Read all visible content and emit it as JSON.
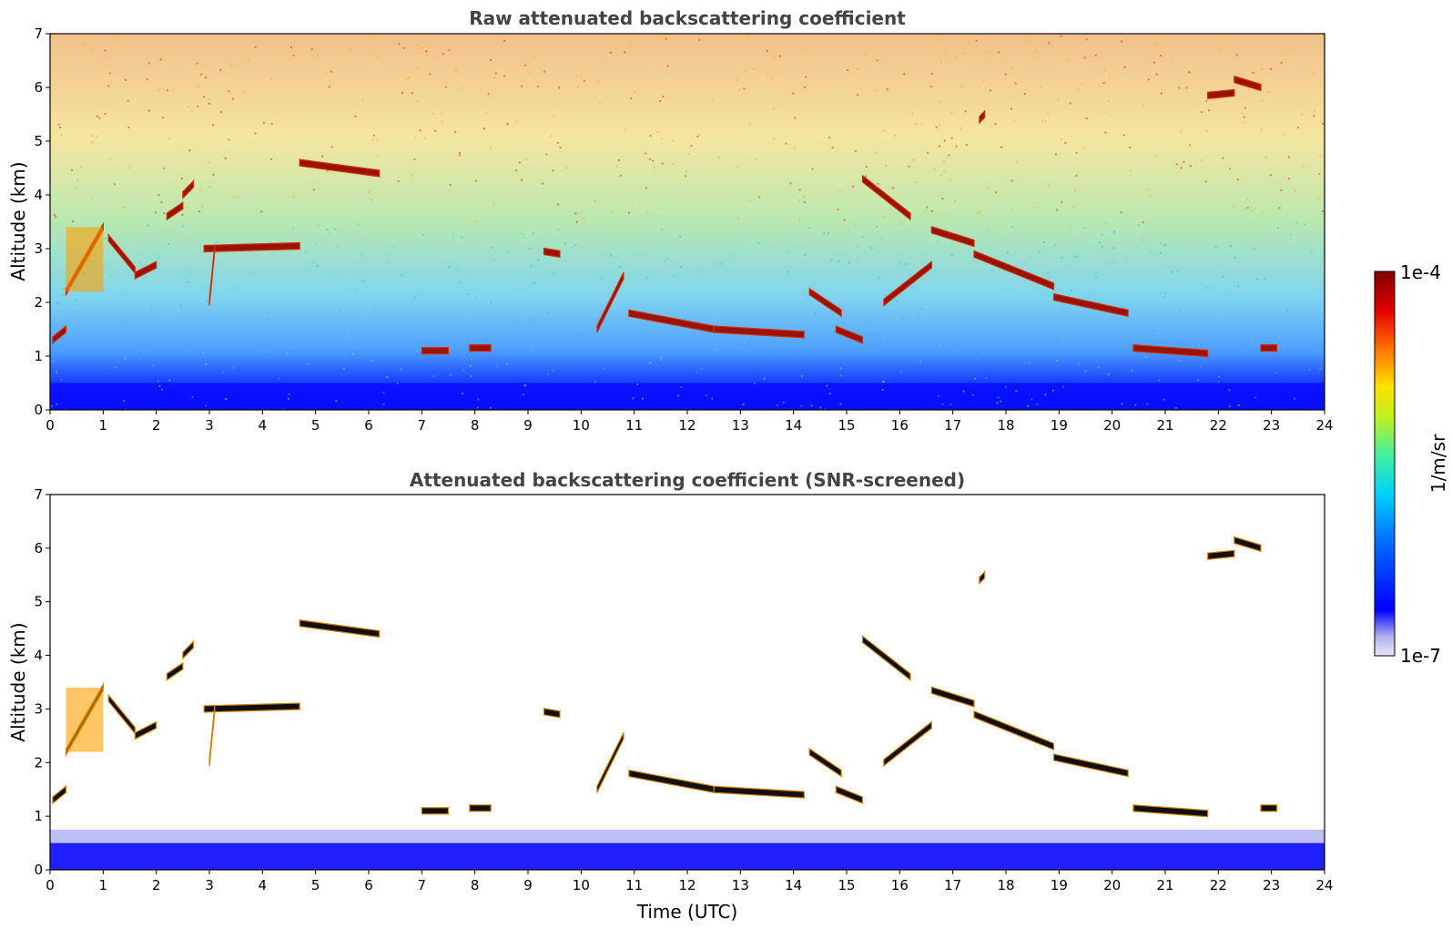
{
  "chart_data": [
    {
      "type": "heatmap",
      "title": "Raw attenuated backscattering coefficient",
      "xlabel": "",
      "ylabel": "Altitude (km)",
      "xlim": [
        0,
        24
      ],
      "ylim": [
        0,
        7
      ],
      "xticks": [
        "0",
        "1",
        "2",
        "3",
        "4",
        "5",
        "6",
        "7",
        "8",
        "9",
        "10",
        "11",
        "12",
        "13",
        "14",
        "15",
        "16",
        "17",
        "18",
        "19",
        "20",
        "21",
        "22",
        "23",
        "24"
      ],
      "yticks": [
        "0",
        "1",
        "2",
        "3",
        "4",
        "5",
        "6",
        "7"
      ],
      "background": "noisy signal increasing with altitude",
      "layers": [
        {
          "x": [
            0.05,
            0.3
          ],
          "y": [
            1.3,
            1.5
          ]
        },
        {
          "x": [
            0.3,
            1.0
          ],
          "y": [
            2.2,
            3.4
          ]
        },
        {
          "x": [
            1.1,
            1.6
          ],
          "y": [
            3.2,
            2.6
          ]
        },
        {
          "x": [
            1.6,
            2.0
          ],
          "y": [
            2.5,
            2.7
          ]
        },
        {
          "x": [
            2.2,
            2.5
          ],
          "y": [
            3.6,
            3.8
          ]
        },
        {
          "x": [
            2.5,
            2.7
          ],
          "y": [
            4.0,
            4.2
          ]
        },
        {
          "x": [
            2.9,
            4.7
          ],
          "y": [
            3.0,
            3.05
          ]
        },
        {
          "x": [
            3.0,
            3.1
          ],
          "y": [
            2.0,
            3.0
          ]
        },
        {
          "x": [
            4.7,
            6.2
          ],
          "y": [
            4.6,
            4.4
          ]
        },
        {
          "x": [
            9.3,
            9.6
          ],
          "y": [
            2.95,
            2.9
          ]
        },
        {
          "x": [
            7.0,
            7.5
          ],
          "y": [
            1.1,
            1.1
          ]
        },
        {
          "x": [
            7.9,
            8.3
          ],
          "y": [
            1.15,
            1.15
          ]
        },
        {
          "x": [
            10.3,
            10.8
          ],
          "y": [
            1.5,
            2.5
          ]
        },
        {
          "x": [
            10.9,
            12.5
          ],
          "y": [
            1.8,
            1.5
          ]
        },
        {
          "x": [
            12.5,
            14.2
          ],
          "y": [
            1.5,
            1.4
          ]
        },
        {
          "x": [
            14.3,
            14.9
          ],
          "y": [
            2.2,
            1.8
          ]
        },
        {
          "x": [
            14.8,
            15.3
          ],
          "y": [
            1.5,
            1.3
          ]
        },
        {
          "x": [
            15.3,
            16.2
          ],
          "y": [
            4.3,
            3.6
          ]
        },
        {
          "x": [
            15.7,
            16.6
          ],
          "y": [
            2.0,
            2.7
          ]
        },
        {
          "x": [
            16.6,
            17.4
          ],
          "y": [
            3.35,
            3.1
          ]
        },
        {
          "x": [
            17.4,
            18.9
          ],
          "y": [
            2.9,
            2.3
          ]
        },
        {
          "x": [
            18.9,
            20.3
          ],
          "y": [
            2.1,
            1.8
          ]
        },
        {
          "x": [
            17.5,
            17.6
          ],
          "y": [
            5.4,
            5.5
          ]
        },
        {
          "x": [
            20.4,
            21.8
          ],
          "y": [
            1.15,
            1.05
          ]
        },
        {
          "x": [
            21.8,
            22.3
          ],
          "y": [
            5.85,
            5.9
          ]
        },
        {
          "x": [
            22.3,
            22.8
          ],
          "y": [
            6.15,
            6.0
          ]
        },
        {
          "x": [
            22.8,
            23.1
          ],
          "y": [
            1.15,
            1.15
          ]
        }
      ]
    },
    {
      "type": "heatmap",
      "title": "Attenuated backscattering coefficient (SNR-screened)",
      "xlabel": "Time (UTC)",
      "ylabel": "Altitude (km)",
      "xlim": [
        0,
        24
      ],
      "ylim": [
        0,
        7
      ],
      "xticks": [
        "0",
        "1",
        "2",
        "3",
        "4",
        "5",
        "6",
        "7",
        "8",
        "9",
        "10",
        "11",
        "12",
        "13",
        "14",
        "15",
        "16",
        "17",
        "18",
        "19",
        "20",
        "21",
        "22",
        "23",
        "24"
      ],
      "yticks": [
        "0",
        "1",
        "2",
        "3",
        "4",
        "5",
        "6",
        "7"
      ],
      "background": "screened (white) except near-surface layer",
      "boundary_layer_top_km": 0.5,
      "layers": [
        {
          "x": [
            0.05,
            0.3
          ],
          "y": [
            1.3,
            1.5
          ]
        },
        {
          "x": [
            0.3,
            1.0
          ],
          "y": [
            2.2,
            3.4
          ]
        },
        {
          "x": [
            1.1,
            1.6
          ],
          "y": [
            3.2,
            2.6
          ]
        },
        {
          "x": [
            1.6,
            2.0
          ],
          "y": [
            2.5,
            2.7
          ]
        },
        {
          "x": [
            2.2,
            2.5
          ],
          "y": [
            3.6,
            3.8
          ]
        },
        {
          "x": [
            2.5,
            2.7
          ],
          "y": [
            4.0,
            4.2
          ]
        },
        {
          "x": [
            2.9,
            4.7
          ],
          "y": [
            3.0,
            3.05
          ]
        },
        {
          "x": [
            3.0,
            3.1
          ],
          "y": [
            2.0,
            3.0
          ]
        },
        {
          "x": [
            4.7,
            6.2
          ],
          "y": [
            4.6,
            4.4
          ]
        },
        {
          "x": [
            9.3,
            9.6
          ],
          "y": [
            2.95,
            2.9
          ]
        },
        {
          "x": [
            7.0,
            7.5
          ],
          "y": [
            1.1,
            1.1
          ]
        },
        {
          "x": [
            7.9,
            8.3
          ],
          "y": [
            1.15,
            1.15
          ]
        },
        {
          "x": [
            10.3,
            10.8
          ],
          "y": [
            1.5,
            2.5
          ]
        },
        {
          "x": [
            10.9,
            12.5
          ],
          "y": [
            1.8,
            1.5
          ]
        },
        {
          "x": [
            12.5,
            14.2
          ],
          "y": [
            1.5,
            1.4
          ]
        },
        {
          "x": [
            14.3,
            14.9
          ],
          "y": [
            2.2,
            1.8
          ]
        },
        {
          "x": [
            14.8,
            15.3
          ],
          "y": [
            1.5,
            1.3
          ]
        },
        {
          "x": [
            15.3,
            16.2
          ],
          "y": [
            4.3,
            3.6
          ]
        },
        {
          "x": [
            15.7,
            16.6
          ],
          "y": [
            2.0,
            2.7
          ]
        },
        {
          "x": [
            16.6,
            17.4
          ],
          "y": [
            3.35,
            3.1
          ]
        },
        {
          "x": [
            17.4,
            18.9
          ],
          "y": [
            2.9,
            2.3
          ]
        },
        {
          "x": [
            18.9,
            20.3
          ],
          "y": [
            2.1,
            1.8
          ]
        },
        {
          "x": [
            17.5,
            17.6
          ],
          "y": [
            5.4,
            5.5
          ]
        },
        {
          "x": [
            20.4,
            21.8
          ],
          "y": [
            1.15,
            1.05
          ]
        },
        {
          "x": [
            21.8,
            22.3
          ],
          "y": [
            5.85,
            5.9
          ]
        },
        {
          "x": [
            22.3,
            22.8
          ],
          "y": [
            6.15,
            6.0
          ]
        },
        {
          "x": [
            22.8,
            23.1
          ],
          "y": [
            1.15,
            1.15
          ]
        }
      ]
    }
  ],
  "colorbar": {
    "label": "1/m/sr",
    "max_label": "1e-4",
    "min_label": "1e-7",
    "min": 1e-07,
    "max": 0.0001,
    "scale": "log",
    "colormap": "jet",
    "colors": [
      "#e8e8f8",
      "#c0c0f0",
      "#7070f0",
      "#0000ff",
      "#0040ff",
      "#0080ff",
      "#00c0ff",
      "#00e0e0",
      "#40f0a0",
      "#80f060",
      "#c0f020",
      "#ffe000",
      "#ffa000",
      "#ff6000",
      "#ff2000",
      "#d00000",
      "#800000"
    ]
  }
}
